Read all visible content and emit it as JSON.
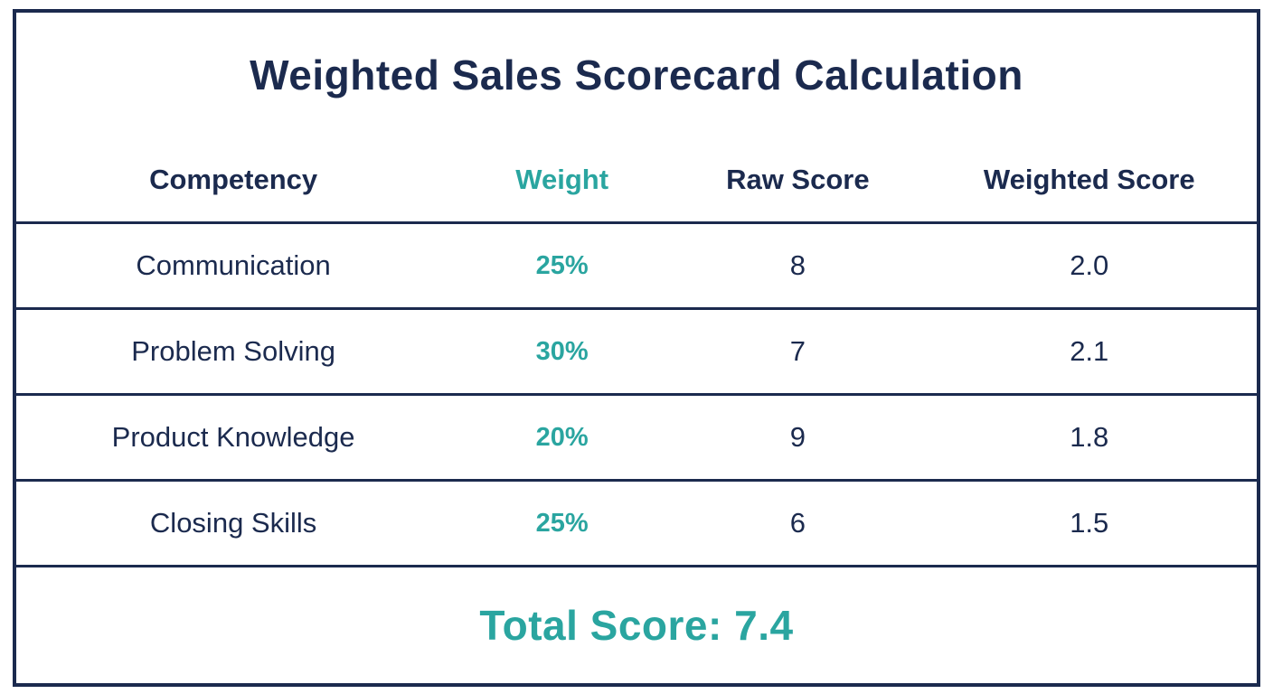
{
  "title": "Weighted Sales Scorecard Calculation",
  "colors": {
    "navy": "#1b2a4e",
    "teal": "#2aa5a0",
    "background": "#ffffff"
  },
  "table": {
    "headers": [
      "Competency",
      "Weight",
      "Raw Score",
      "Weighted Score"
    ],
    "rows": [
      {
        "competency": "Communication",
        "weight": "25%",
        "raw": "8",
        "weighted": "2.0"
      },
      {
        "competency": "Problem Solving",
        "weight": "30%",
        "raw": "7",
        "weighted": "2.1"
      },
      {
        "competency": "Product Knowledge",
        "weight": "20%",
        "raw": "9",
        "weighted": "1.8"
      },
      {
        "competency": "Closing Skills",
        "weight": "25%",
        "raw": "6",
        "weighted": "1.5"
      }
    ],
    "total_label": "Total Score: 7.4"
  },
  "chart_data": {
    "type": "table",
    "title": "Weighted Sales Scorecard Calculation",
    "columns": [
      "Competency",
      "Weight",
      "Raw Score",
      "Weighted Score"
    ],
    "rows": [
      [
        "Communication",
        "25%",
        8,
        2.0
      ],
      [
        "Problem Solving",
        "30%",
        7,
        2.1
      ],
      [
        "Product Knowledge",
        "20%",
        9,
        1.8
      ],
      [
        "Closing Skills",
        "25%",
        6,
        1.5
      ]
    ],
    "total_score": 7.4
  }
}
